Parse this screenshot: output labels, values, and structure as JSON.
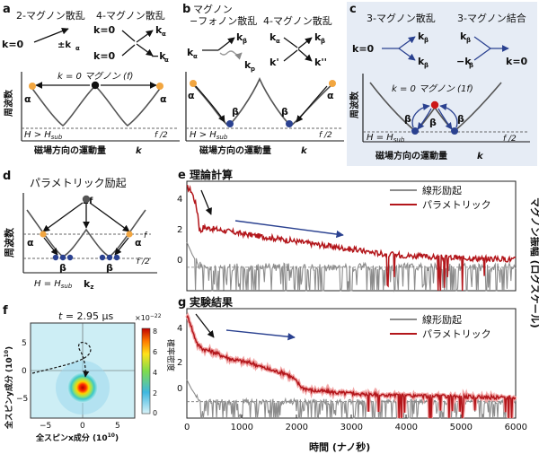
{
  "panels": {
    "a": {
      "letter": "a",
      "h_2mag": "2-マグノン散乱",
      "h_4mag": "4-マグノン散乱",
      "k0_1": "k=0",
      "pm_ka": "±k",
      "ka_sub": "α",
      "k0_2": "k=0",
      "k0_3": "k=0",
      "ka_a": "k",
      "ka_b": "k",
      "minus_ka_a": "−k",
      "minus_ka_b": "−k",
      "k0_magnon_a": "k = 0 マグノン (",
      "k0_magnon_f": "f",
      "k0_magnon_b": ")",
      "alpha_left": "α",
      "alpha_right": "α",
      "ylabel": "周波数",
      "xlabel": "磁場方向の運動量",
      "xlabel_k": "k",
      "f_half": "f /2",
      "H_cond": "H > H",
      "H_sub": "sub"
    },
    "b": {
      "letter": "b",
      "h_mp_1": "マグノン",
      "h_mp_2": "−フォノン散乱",
      "h_4mag": "4-マグノン散乱",
      "kb": "k",
      "ka": "k",
      "kp": "k",
      "ka2": "k",
      "kb2": "k",
      "kprime": "k'",
      "kdouble": "k''",
      "alpha_left": "α",
      "alpha_right": "α",
      "beta_left": "β",
      "beta_right": "β",
      "xlabel": "磁場方向の運動量",
      "xlabel_k": "k",
      "f_half": "f /2",
      "H_cond": "H > H",
      "H_sub": "sub"
    },
    "c": {
      "letter": "c",
      "h_3scat": "3-マグノン散乱",
      "h_3comb": "3-マグノン結合",
      "k0_left": "k=0",
      "kb_1": "k",
      "kb_2": "k",
      "kb_3": "k",
      "minus_kb": "−k",
      "k0_right": "k=0",
      "k0_magnon": "k = 0 マグノン (1",
      "k0_magnon_f": "f",
      "k0_magnon_close": ")",
      "beta_1": "β",
      "beta_2": "β",
      "beta_3": "β",
      "ylabel": "周波数",
      "xlabel": "磁場方向の運動量",
      "xlabel_k": "k",
      "f_half": "f /2",
      "H_cond": "H = H",
      "H_sub": "sub"
    },
    "d": {
      "letter": "d",
      "title": "パラメトリック励起",
      "two_f": "2f",
      "f": "f",
      "f_half": "f /2",
      "alpha_left": "α",
      "alpha_right": "α",
      "beta_left": "β",
      "beta_right": "β",
      "ylabel": "周波数",
      "xlabel": "k",
      "xlabel_sub": "z",
      "H_cond": "H = H",
      "H_sub": "sub"
    },
    "e": {
      "letter": "e",
      "title": "理論計算",
      "legend_linear": "線形励起",
      "legend_param": "パラメトリック",
      "yticks": [
        "4",
        "2",
        "0"
      ]
    },
    "g": {
      "letter": "g",
      "title": "実験結果",
      "legend_linear": "線形励起",
      "legend_param": "パラメトリック",
      "yticks": [
        "4",
        "2",
        "0"
      ],
      "xticks": [
        "0",
        "1000",
        "2000",
        "3000",
        "4000",
        "5000",
        "6000"
      ],
      "xlabel": "時間 (ナノ秒)"
    },
    "shared_ylabel": "マグノン振幅 (ログスケール)",
    "f": {
      "letter": "f",
      "time_label": "t",
      "time_value": " = 2.95 μs",
      "ylabel": "全スピンy成分 (10",
      "ylabel_exp": "10",
      "ylabel_close": ")",
      "xlabel": "全スピンx成分 (10",
      "xlabel_exp": "10",
      "xlabel_close": ")",
      "xticks": [
        "−5",
        "0",
        "5"
      ],
      "yticks": [
        "5",
        "0",
        "−5"
      ],
      "cb_scale": "×10",
      "cb_scale_exp": "−22",
      "cb_ticks": [
        "8",
        "6",
        "4",
        "2",
        "0"
      ],
      "cb_label": "確率密度"
    }
  },
  "colors": {
    "linear": "#8c8c8c",
    "parametric": "#b3161b",
    "parametric_band": "#f2a7a7",
    "blue": "#2a4190",
    "orange": "#f2a640",
    "red_dot": "#cc1717",
    "panel_c_bg": "#e6ecf5"
  },
  "chart_data": [
    {
      "panel": "e",
      "type": "line",
      "title": "理論計算",
      "x_range": [
        0,
        6000
      ],
      "ylim": [
        -1.5,
        5.5
      ],
      "series": [
        {
          "name": "パラメトリック",
          "x": [
            0,
            80,
            150,
            200,
            230,
            260,
            300,
            500,
            1000,
            1500,
            2000,
            2500,
            3000,
            3300,
            3600,
            4000,
            4500,
            5000,
            5500,
            6000
          ],
          "y": [
            5.1,
            4.9,
            4.2,
            3.4,
            2.4,
            2.3,
            2.55,
            2.45,
            2.15,
            1.9,
            1.65,
            1.4,
            1.15,
            1.0,
            0.85,
            0.75,
            0.65,
            0.6,
            0.55,
            0.5
          ]
        },
        {
          "name": "線形励起",
          "x": [
            0,
            100,
            200,
            300,
            1000,
            2000,
            3000,
            4000,
            5000,
            6000
          ],
          "y": [
            1.6,
            0.8,
            0.2,
            0.0,
            0.0,
            0.0,
            0.0,
            0.0,
            0.0,
            0.0
          ]
        }
      ]
    },
    {
      "panel": "g",
      "type": "line",
      "title": "実験結果",
      "x_range": [
        0,
        6000
      ],
      "ylim": [
        -1.5,
        8.5
      ],
      "series": [
        {
          "name": "パラメトリック",
          "x": [
            0,
            50,
            120,
            200,
            300,
            450,
            600,
            800,
            1000,
            1200,
            1400,
            1600,
            1800,
            1950,
            2100,
            2300,
            2500,
            2800,
            3200,
            3600,
            4000,
            4400,
            4800,
            5200,
            5600,
            6000
          ],
          "y": [
            7.8,
            7.4,
            6.2,
            5.2,
            4.8,
            4.6,
            4.3,
            3.9,
            3.7,
            3.5,
            3.1,
            2.8,
            2.6,
            2.1,
            1.3,
            1.0,
            0.95,
            0.8,
            0.7,
            0.6,
            0.55,
            0.5,
            0.45,
            0.45,
            0.4,
            0.4
          ]
        },
        {
          "name": "線形励起",
          "x": [
            0,
            80,
            200,
            400,
            1000,
            2000,
            3000,
            4000,
            5000,
            6000
          ],
          "y": [
            2.0,
            1.2,
            0.3,
            0.0,
            0.0,
            0.0,
            0.0,
            0.0,
            0.0,
            0.0
          ]
        }
      ]
    },
    {
      "panel": "f",
      "type": "heatmap",
      "x_range": [
        -8,
        8
      ],
      "y_range": [
        -8,
        8
      ],
      "colorbar_range": [
        0,
        8
      ],
      "peak": [
        1.0,
        -1.8
      ]
    }
  ]
}
